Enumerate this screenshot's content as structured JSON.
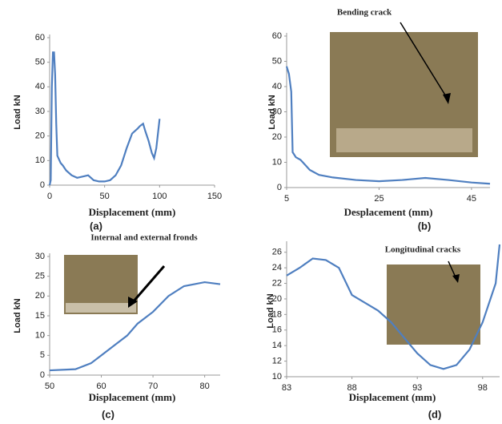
{
  "chart_data": [
    {
      "type": "line",
      "panel_label": "(a)",
      "x_label": "Displacement (mm)",
      "y_label": "Load kN",
      "color": "#4f7fc0",
      "x": [
        0,
        1,
        2,
        3,
        4,
        5,
        6,
        7,
        8,
        9,
        10,
        12,
        15,
        20,
        25,
        30,
        35,
        40,
        45,
        50,
        55,
        60,
        65,
        70,
        75,
        80,
        82,
        85,
        87,
        90,
        93,
        95,
        97,
        100
      ],
      "values": [
        0,
        2,
        40,
        54,
        54,
        45,
        25,
        12,
        11,
        10,
        9,
        8,
        6,
        4,
        3,
        3.5,
        4,
        2,
        1.5,
        1.5,
        2,
        4,
        8,
        15,
        21,
        23,
        24,
        25,
        22,
        18,
        13,
        11,
        15,
        27
      ],
      "xlim": [
        0,
        150
      ],
      "ylim": [
        0,
        60
      ],
      "xticks": [
        0,
        50,
        100,
        150
      ],
      "yticks": [
        0,
        10,
        20,
        30,
        40,
        50,
        60
      ]
    },
    {
      "type": "line",
      "panel_label": "(b)",
      "x_label": "Desplacement (mm)",
      "y_label": "Load kN",
      "annotation": "Bending crack",
      "color": "#4f7fc0",
      "x": [
        5,
        5.5,
        6,
        6.3,
        7,
        8,
        9,
        10,
        12,
        15,
        20,
        25,
        30,
        35,
        40,
        45,
        49
      ],
      "values": [
        48,
        45,
        38,
        14,
        12,
        11,
        9,
        7,
        5,
        4,
        3,
        2.5,
        3,
        3.8,
        3,
        2,
        1.5
      ],
      "xlim": [
        5,
        49
      ],
      "ylim": [
        0,
        60
      ],
      "xticks": [
        5,
        25,
        45
      ],
      "yticks": [
        0,
        10,
        20,
        30,
        40,
        50,
        60
      ]
    },
    {
      "type": "line",
      "panel_label": "(c)",
      "x_label": "Displacement (mm)",
      "y_label": "Load kN",
      "annotation": "Internal and external fronds",
      "color": "#4f7fc0",
      "x": [
        50,
        55,
        58,
        60,
        63,
        65,
        67,
        70,
        73,
        76,
        78,
        80,
        83
      ],
      "values": [
        1.2,
        1.5,
        3,
        5,
        8,
        10,
        13,
        16,
        20,
        22.5,
        23,
        23.5,
        23
      ],
      "xlim": [
        50,
        83
      ],
      "ylim": [
        0,
        30
      ],
      "xticks": [
        50,
        60,
        70,
        80
      ],
      "yticks": [
        0,
        5,
        10,
        15,
        20,
        25,
        30
      ]
    },
    {
      "type": "line",
      "panel_label": "(d)",
      "x_label": "Displacement (mm)",
      "y_label": "Load kN",
      "annotation": "Longitudinal cracks",
      "color": "#4f7fc0",
      "x": [
        83,
        84,
        85,
        86,
        87,
        88,
        89,
        90,
        91,
        92,
        93,
        94,
        95,
        96,
        97,
        98,
        99,
        99.3
      ],
      "values": [
        23,
        24,
        25.2,
        25,
        24,
        20.5,
        19.5,
        18.5,
        17,
        15,
        13,
        11.5,
        11,
        11.5,
        13.5,
        17,
        22,
        27
      ],
      "xlim": [
        83,
        99.3
      ],
      "ylim": [
        10,
        27
      ],
      "xticks": [
        83,
        88,
        93,
        98
      ],
      "yticks": [
        10,
        12,
        14,
        16,
        18,
        20,
        22,
        24,
        26
      ]
    }
  ]
}
